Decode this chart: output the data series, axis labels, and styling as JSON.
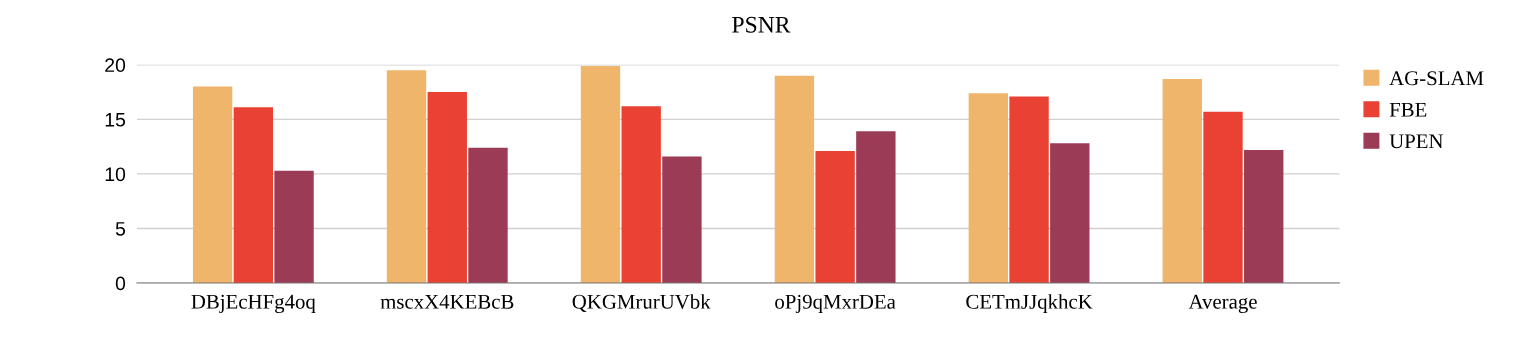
{
  "chart_data": {
    "type": "bar",
    "title": "PSNR",
    "categories": [
      "DBjEcHFg4oq",
      "mscxX4KEBcB",
      "QKGMrurUVbk",
      "oPj9qMxrDEa",
      "CETmJJqkhcK",
      "Average"
    ],
    "series": [
      {
        "name": "AG-SLAM",
        "color": "#eeb56b",
        "values": [
          18.0,
          19.5,
          19.9,
          19.0,
          17.4,
          18.7
        ]
      },
      {
        "name": "FBE",
        "color": "#e94235",
        "values": [
          16.1,
          17.5,
          16.2,
          12.1,
          17.1,
          15.7
        ]
      },
      {
        "name": "UPEN",
        "color": "#9b3b55",
        "values": [
          10.3,
          12.4,
          11.6,
          13.9,
          12.8,
          12.2
        ]
      }
    ],
    "ylim": [
      0,
      20
    ],
    "yticks": [
      0,
      5,
      10,
      15,
      20
    ],
    "grid": "y",
    "legend": "top right"
  }
}
